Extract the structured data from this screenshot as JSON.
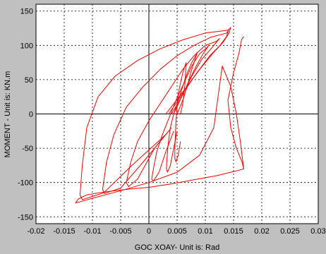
{
  "window": {
    "background": "#c0c0c0"
  },
  "chart_data": {
    "type": "line",
    "title": "",
    "xlabel": "GOC XOAY- Unit is: Rad",
    "ylabel": "MOMENT - Unit is: KN.m",
    "xlim": [
      -0.02,
      0.03
    ],
    "ylim": [
      -160,
      160
    ],
    "xticks": [
      -0.02,
      -0.015,
      -0.01,
      -0.005,
      0,
      0.005,
      0.01,
      0.015,
      0.02,
      0.025,
      0.03
    ],
    "xtick_labels": [
      "-0.02",
      "-0.015",
      "-0.01",
      "-0.005",
      "0",
      "0.005",
      "0.01",
      "0.015",
      "0.02",
      "0.025",
      "0.03"
    ],
    "yticks": [
      -150,
      -100,
      -50,
      0,
      50,
      100,
      150
    ],
    "ytick_labels": [
      "-150",
      "-100",
      "-50",
      "0",
      "50",
      "100",
      "150"
    ],
    "grid": true,
    "series_color": "#ff0000",
    "series": [
      {
        "x": [
          0.0056,
          0.006,
          0.0062,
          0.0064,
          0.0065,
          0.0066,
          0.0066,
          0.0064,
          0.006,
          0.0056,
          0.0052,
          0.005,
          0.0048,
          0.0047,
          0.0046,
          0.0046,
          0.0048,
          0.0052,
          0.0056
        ],
        "y": [
          0,
          15,
          30,
          45,
          60,
          70,
          75,
          70,
          60,
          45,
          30,
          10,
          -10,
          -30,
          -50,
          -65,
          -70,
          -60,
          -40
        ]
      },
      {
        "x": [
          0.005,
          0.006,
          0.0068,
          0.0074,
          0.008,
          0.0084,
          0.0086,
          0.0083,
          0.0076,
          0.0068,
          0.006,
          0.0052,
          0.0044,
          0.0038,
          0.0034,
          0.0032,
          0.0031,
          0.0033,
          0.0038,
          0.0044,
          0.005
        ],
        "y": [
          0,
          20,
          40,
          60,
          75,
          85,
          90,
          85,
          75,
          60,
          40,
          20,
          0,
          -20,
          -45,
          -65,
          -80,
          -85,
          -75,
          -50,
          -25
        ]
      },
      {
        "x": [
          0.0044,
          0.0058,
          0.0072,
          0.0084,
          0.0094,
          0.0102,
          0.0106,
          0.0102,
          0.009,
          0.0076,
          0.0062,
          0.0048,
          0.0036,
          0.0024,
          0.0014,
          0.0008,
          0.0005,
          0.0008,
          0.0018,
          0.003,
          0.0044
        ],
        "y": [
          0,
          25,
          50,
          70,
          85,
          95,
          100,
          96,
          88,
          70,
          45,
          20,
          -5,
          -30,
          -55,
          -80,
          -95,
          -98,
          -85,
          -55,
          -25
        ]
      },
      {
        "x": [
          0.004,
          0.0058,
          0.0076,
          0.0094,
          0.011,
          0.012,
          0.0125,
          0.012,
          0.01,
          0.008,
          0.006,
          0.004,
          0.002,
          0.0,
          -0.002,
          -0.0032,
          -0.004,
          -0.0036,
          -0.002,
          0.001,
          0.004
        ],
        "y": [
          0,
          25,
          55,
          80,
          95,
          105,
          110,
          106,
          100,
          85,
          65,
          40,
          15,
          -10,
          -40,
          -70,
          -100,
          -106,
          -95,
          -50,
          -20
        ]
      },
      {
        "x": [
          0.0035,
          0.006,
          0.0085,
          0.0108,
          0.0126,
          0.0137,
          0.0141,
          0.0138,
          0.011,
          0.008,
          0.005,
          0.002,
          -0.001,
          -0.004,
          -0.0062,
          -0.0075,
          -0.0082,
          -0.0078,
          -0.005,
          -0.001,
          0.0035
        ],
        "y": [
          0,
          30,
          60,
          85,
          100,
          112,
          122,
          118,
          112,
          100,
          85,
          65,
          40,
          10,
          -30,
          -70,
          -110,
          -116,
          -108,
          -70,
          -25
        ]
      },
      {
        "x": [
          0.003,
          0.006,
          0.009,
          0.0115,
          0.0132,
          0.0142,
          0.0145,
          0.014,
          0.01,
          0.006,
          0.002,
          -0.002,
          -0.006,
          -0.009,
          -0.011,
          -0.0118,
          -0.0122,
          -0.0118,
          -0.008,
          -0.003,
          0.003
        ],
        "y": [
          0,
          32,
          65,
          90,
          105,
          118,
          126,
          122,
          118,
          108,
          95,
          78,
          55,
          25,
          -20,
          -75,
          -118,
          -125,
          -115,
          -75,
          -30
        ]
      },
      {
        "x": [
          0.013,
          0.0145,
          0.0155,
          0.0162,
          0.0168,
          0.016,
          0.015,
          0.012,
          0.008,
          0.004,
          0.0,
          -0.004,
          -0.008,
          -0.011,
          -0.0125,
          -0.013,
          -0.01,
          -0.005,
          0.0,
          0.005,
          0.009,
          0.0115,
          0.013
        ],
        "y": [
          70,
          40,
          0,
          -40,
          -80,
          -82,
          -84,
          -90,
          -96,
          -102,
          -107,
          -110,
          -114,
          -118,
          -124,
          -130,
          -123,
          -112,
          -100,
          -85,
          -60,
          -20,
          70
        ]
      },
      {
        "x": [
          0.0168,
          0.0164,
          0.016,
          0.015,
          0.014,
          0.0145,
          0.0155,
          0.0165,
          0.0168
        ],
        "y": [
          113,
          108,
          90,
          60,
          20,
          -20,
          -50,
          -70,
          -80
        ]
      }
    ]
  }
}
